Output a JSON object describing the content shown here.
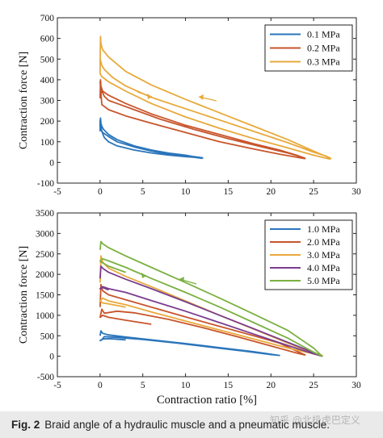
{
  "chart_data": [
    {
      "type": "line",
      "xlabel": "",
      "ylabel": "Contraction force [N]",
      "xlim": [
        -5,
        30
      ],
      "ylim": [
        -100,
        700
      ],
      "xticks": [
        "-5",
        "0",
        "5",
        "10",
        "15",
        "20",
        "25",
        "30"
      ],
      "yticks": [
        "-100",
        "0",
        "100",
        "200",
        "300",
        "400",
        "500",
        "600",
        "700"
      ],
      "legend_position": "top-right",
      "grid": false,
      "series": [
        {
          "name": "0.1 MPa",
          "color": "#2a75bb",
          "x": [
            0,
            0.05,
            0.1,
            0.2,
            0.4,
            1,
            2,
            4,
            6,
            8,
            10,
            11,
            12,
            11,
            10,
            8,
            6,
            4,
            2,
            1,
            0.5,
            0.2,
            0.1,
            0,
            0,
            0.3,
            1,
            2,
            4,
            6,
            8,
            10,
            11,
            12
          ],
          "y": [
            150,
            215,
            190,
            175,
            160,
            135,
            110,
            80,
            60,
            45,
            35,
            28,
            22,
            25,
            28,
            36,
            46,
            60,
            80,
            100,
            120,
            150,
            175,
            205,
            165,
            145,
            125,
            100,
            75,
            55,
            40,
            30,
            25,
            20
          ]
        },
        {
          "name": "0.2 MPa",
          "color": "#c8552b",
          "x": [
            0,
            0.05,
            0.1,
            0.3,
            1,
            3,
            6,
            10,
            14,
            18,
            21,
            23,
            24,
            23.5,
            22,
            19,
            15,
            11,
            7,
            4,
            2,
            1,
            0.5,
            0.2,
            0.1,
            0,
            0.2,
            1,
            3,
            6,
            10,
            14,
            18,
            21,
            24
          ],
          "y": [
            310,
            400,
            370,
            345,
            325,
            285,
            235,
            180,
            135,
            90,
            60,
            35,
            20,
            28,
            45,
            75,
            115,
            160,
            210,
            255,
            285,
            300,
            320,
            345,
            365,
            390,
            280,
            255,
            225,
            190,
            145,
            100,
            65,
            40,
            18
          ]
        },
        {
          "name": "0.3 MPa",
          "color": "#e8a93a",
          "x": [
            0,
            0.05,
            0.1,
            0.3,
            1,
            3,
            6,
            10,
            14,
            18,
            22,
            25,
            27,
            26.5,
            25,
            22,
            18,
            14,
            10,
            6,
            3,
            1.5,
            0.5,
            0.2,
            0,
            0,
            0.2,
            1,
            3,
            6,
            10,
            14,
            18,
            22,
            25,
            27
          ],
          "y": [
            480,
            610,
            575,
            545,
            510,
            440,
            375,
            305,
            240,
            175,
            110,
            55,
            20,
            30,
            50,
            95,
            150,
            205,
            260,
            315,
            370,
            410,
            450,
            470,
            500,
            430,
            415,
            390,
            345,
            285,
            220,
            165,
            115,
            70,
            35,
            15
          ]
        }
      ]
    },
    {
      "type": "line",
      "xlabel": "Contraction ratio [%]",
      "ylabel": "Contraction force [N]",
      "xlim": [
        -5,
        30
      ],
      "ylim": [
        -500,
        3500
      ],
      "xticks": [
        "-5",
        "0",
        "5",
        "10",
        "15",
        "20",
        "25",
        "30"
      ],
      "yticks": [
        "-500",
        "0",
        "500",
        "1000",
        "1500",
        "2000",
        "2500",
        "3000",
        "3500"
      ],
      "legend_position": "top-right",
      "grid": false,
      "series": [
        {
          "name": "1.0 MPa",
          "color": "#2a75bb",
          "x": [
            0,
            0.1,
            0.3,
            1,
            3,
            6,
            10,
            14,
            18,
            21,
            20,
            17,
            13,
            9,
            5,
            2,
            0.5,
            0.2,
            0,
            0.3,
            1,
            3
          ],
          "y": [
            500,
            620,
            560,
            520,
            470,
            400,
            310,
            210,
            110,
            20,
            40,
            120,
            220,
            320,
            410,
            460,
            480,
            400,
            380,
            420,
            430,
            400
          ]
        },
        {
          "name": "2.0 MPa",
          "color": "#c8552b",
          "x": [
            0,
            0.1,
            0.3,
            1,
            3,
            6,
            10,
            14,
            18,
            21,
            24,
            23,
            20,
            16,
            12,
            8,
            4,
            2,
            0.5,
            0.2,
            0,
            0.3,
            1,
            3,
            6
          ],
          "y": [
            1200,
            1750,
            1600,
            1500,
            1380,
            1200,
            960,
            730,
            500,
            320,
            30,
            80,
            250,
            480,
            700,
            900,
            1060,
            1100,
            1050,
            1150,
            950,
            1000,
            950,
            880,
            780
          ]
        },
        {
          "name": "3.0 MPa",
          "color": "#e8a93a",
          "x": [
            0,
            0.1,
            0.3,
            1,
            3,
            6,
            10,
            14,
            18,
            22,
            25,
            26,
            25,
            22,
            18,
            14,
            10,
            6,
            3,
            1,
            0.3,
            0,
            0.3,
            1,
            3
          ],
          "y": [
            1800,
            2450,
            2300,
            2150,
            1950,
            1700,
            1350,
            1000,
            660,
            320,
            80,
            20,
            60,
            200,
            420,
            640,
            860,
            1080,
            1260,
            1350,
            1420,
            1350,
            1300,
            1280,
            1200
          ]
        },
        {
          "name": "4.0 MPa",
          "color": "#7a3d8f",
          "x": [
            0,
            0.1,
            0.3,
            1,
            3,
            6,
            10,
            14,
            18,
            22,
            25,
            26,
            25,
            22,
            18,
            14,
            10,
            6,
            3,
            1,
            0.3,
            0,
            0.3,
            1
          ],
          "y": [
            1900,
            2200,
            2150,
            2050,
            1880,
            1650,
            1330,
            1000,
            670,
            340,
            90,
            0,
            60,
            260,
            540,
            820,
            1100,
            1360,
            1560,
            1650,
            1700,
            1650,
            1680,
            1620
          ]
        },
        {
          "name": "5.0 MPa",
          "color": "#7bb041",
          "x": [
            0,
            0.1,
            0.3,
            1,
            3,
            6,
            10,
            14,
            18,
            22,
            25,
            26,
            25,
            22,
            18,
            14,
            10,
            6,
            3,
            1,
            0.3,
            0,
            0.3,
            1,
            3
          ],
          "y": [
            2600,
            2800,
            2750,
            2650,
            2450,
            2170,
            1800,
            1420,
            1030,
            630,
            200,
            0,
            100,
            440,
            820,
            1200,
            1560,
            1900,
            2170,
            2330,
            2380,
            2320,
            2280,
            2200,
            2050
          ]
        }
      ]
    }
  ],
  "caption": {
    "label": "Fig. 2",
    "text": "Braid angle of a hydraulic muscle and a pneumatic muscle."
  },
  "watermark": "知乎 @北极虎巴定义"
}
